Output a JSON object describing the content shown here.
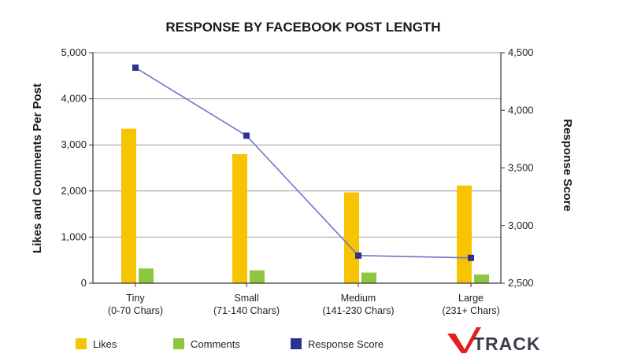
{
  "chart_data": {
    "type": "bar",
    "title": "RESPONSE BY FACEBOOK POST LENGTH",
    "categories": [
      "Tiny",
      "Small",
      "Medium",
      "Large"
    ],
    "category_sublabels": [
      "(0-70 Chars)",
      "(71-140 Chars)",
      "(141-230 Chars)",
      "(231+ Chars)"
    ],
    "ylabel": "Likes and Comments Per Post",
    "y2label": "Response Score",
    "ylim": [
      0,
      5000
    ],
    "y2lim": [
      2500,
      4500
    ],
    "yticks": [
      0,
      1000,
      2000,
      3000,
      4000,
      5000
    ],
    "ytick_labels": [
      "0",
      "1,000",
      "2,000",
      "3,000",
      "4,000",
      "5,000"
    ],
    "y2ticks": [
      2500,
      3000,
      3500,
      4000,
      4500
    ],
    "y2tick_labels": [
      "2,500",
      "3,000",
      "3,500",
      "4,000",
      "4,500"
    ],
    "grid": true,
    "series": [
      {
        "name": "Likes",
        "type": "bar",
        "axis": "left",
        "color": "#F6C400",
        "values": [
          3350,
          2800,
          1970,
          2120
        ]
      },
      {
        "name": "Comments",
        "type": "bar",
        "axis": "left",
        "color": "#8DC63F",
        "values": [
          320,
          280,
          230,
          190
        ]
      },
      {
        "name": "Response Score",
        "type": "line",
        "axis": "right",
        "color": "#2E3192",
        "values": [
          4370,
          3780,
          2740,
          2720
        ]
      }
    ],
    "legend": [
      "Likes",
      "Comments",
      "Response Score"
    ],
    "legend_placement": "bottom"
  },
  "logo": {
    "text": "TRACK",
    "mark": "V"
  }
}
